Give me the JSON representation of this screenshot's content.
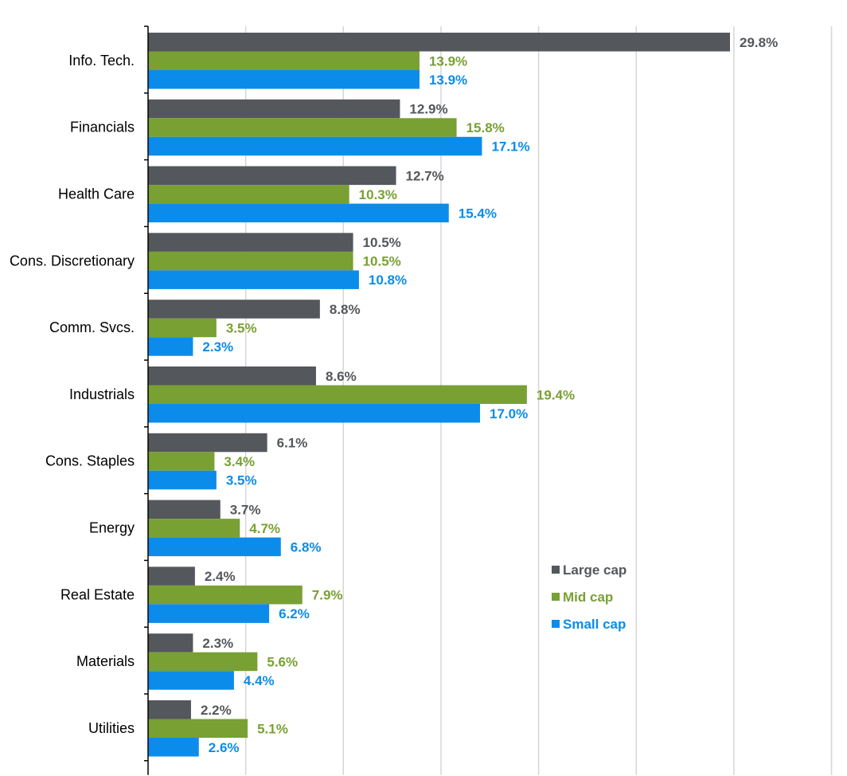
{
  "chart_data": {
    "type": "bar",
    "orientation": "horizontal",
    "categories": [
      "Info. Tech.",
      "Financials",
      "Health Care",
      "Cons. Discretionary",
      "Comm. Svcs.",
      "Industrials",
      "Cons. Staples",
      "Energy",
      "Real Estate",
      "Materials",
      "Utilities"
    ],
    "series": [
      {
        "name": "Large cap",
        "color": "#54575b",
        "values": [
          29.8,
          12.9,
          12.7,
          10.5,
          8.8,
          8.6,
          6.1,
          3.7,
          2.4,
          2.3,
          2.2
        ],
        "labels": [
          "29.8%",
          "12.9%",
          "12.7%",
          "10.5%",
          "8.8%",
          "8.6%",
          "6.1%",
          "3.7%",
          "2.4%",
          "2.3%",
          "2.2%"
        ]
      },
      {
        "name": "Mid cap",
        "color": "#79a033",
        "values": [
          13.9,
          15.8,
          10.3,
          10.5,
          3.5,
          19.4,
          3.4,
          4.7,
          7.9,
          5.6,
          5.1
        ],
        "labels": [
          "13.9%",
          "15.8%",
          "10.3%",
          "10.5%",
          "3.5%",
          "19.4%",
          "3.4%",
          "4.7%",
          "7.9%",
          "5.6%",
          "5.1%"
        ]
      },
      {
        "name": "Small cap",
        "color": "#0c8cea",
        "values": [
          13.9,
          17.1,
          15.4,
          10.8,
          2.3,
          17.0,
          3.5,
          6.8,
          6.2,
          4.4,
          2.6
        ],
        "labels": [
          "13.9%",
          "17.1%",
          "15.4%",
          "10.8%",
          "2.3%",
          "17.0%",
          "3.5%",
          "6.8%",
          "6.2%",
          "4.4%",
          "2.6%"
        ]
      }
    ],
    "xlim": [
      0,
      35
    ],
    "grid": true,
    "legend_position": "bottom-right",
    "title": "",
    "xlabel": "",
    "ylabel": ""
  }
}
